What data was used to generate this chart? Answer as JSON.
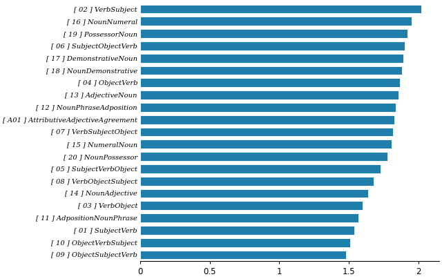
{
  "categories": [
    "[ 02 ] VerbSubject",
    "[ 16 ] NounNumeral",
    "[ 19 ] PossessorNoun",
    "[ 06 ] SubjectObjectVerb",
    "[ 17 ] DemonstrativeNoun",
    "[ 18 ] NounDemonstrative",
    "[ 04 ] ObjectVerb",
    "[ 13 ] AdjectiveNoun",
    "[ 12 ] NounPhraseAdposition",
    "[ A01 ] AttributiveAdjectiveAgreement",
    "[ 07 ] VerbSubjectObject",
    "[ 15 ] NumeralNoun",
    "[ 20 ] NounPossessor",
    "[ 05 ] SubjectVerbObject",
    "[ 08 ] VerbObjectSubject",
    "[ 14 ] NounAdjective",
    "[ 03 ] VerbObject",
    "[ 11 ] AdpositionNounPhrase",
    "[ 01 ] SubjectVerb",
    "[ 10 ] ObjectVerbSubject",
    "[ 09 ] ObjectSubjectVerb"
  ],
  "values": [
    2.02,
    1.95,
    1.92,
    1.9,
    1.89,
    1.88,
    1.87,
    1.86,
    1.84,
    1.83,
    1.82,
    1.81,
    1.78,
    1.73,
    1.68,
    1.64,
    1.6,
    1.57,
    1.54,
    1.51,
    1.48
  ],
  "bar_color": "#1f7eaa",
  "background_color": "#ffffff",
  "xlim": [
    0,
    2.15
  ],
  "xticks": [
    0,
    0.5,
    1,
    1.5,
    2
  ],
  "xtick_labels": [
    "0",
    "0.5",
    "1",
    "1.5",
    "2"
  ],
  "figsize": [
    6.4,
    4.04
  ],
  "dpi": 100,
  "label_fontsize": 7.2,
  "tick_fontsize": 8.5
}
